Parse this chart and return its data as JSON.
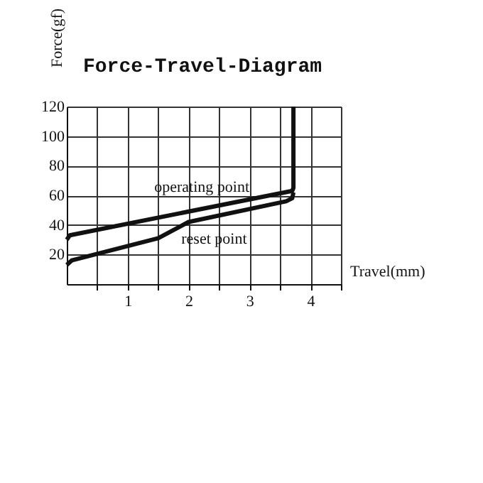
{
  "chart_data": {
    "type": "line",
    "title": "Force-Travel-Diagram",
    "xlabel": "Travel(mm)",
    "ylabel": "Force(gf)",
    "series": [
      {
        "color": "#111111",
        "x": [
          0,
          0.05,
          3.7,
          3.72,
          3.72
        ],
        "values": [
          30,
          33,
          63,
          65,
          120
        ]
      },
      {
        "color": "#111111",
        "x": [
          0,
          0.08,
          1.5,
          2.0,
          3.6,
          3.7,
          3.72
        ],
        "values": [
          13,
          16,
          31,
          42,
          56,
          58,
          62
        ]
      }
    ],
    "annotations": [
      {
        "text": "operating point",
        "x": 1.95,
        "y": 49
      },
      {
        "text": "reset point",
        "x": 1.95,
        "y": 42
      }
    ],
    "xlim": [
      0,
      4.5
    ],
    "ylim": [
      0,
      120
    ],
    "xticks": [
      {
        "value": 0.5,
        "label": null
      },
      1,
      {
        "value": 1.5,
        "label": null
      },
      2,
      {
        "value": 2.5,
        "label": null
      },
      3,
      {
        "value": 3.5,
        "label": null
      },
      4,
      {
        "value": 4.5,
        "label": null
      }
    ],
    "yticks": [
      20,
      40,
      60,
      80,
      100,
      120
    ],
    "grid": true,
    "marker": "none",
    "line_style": "solid"
  }
}
